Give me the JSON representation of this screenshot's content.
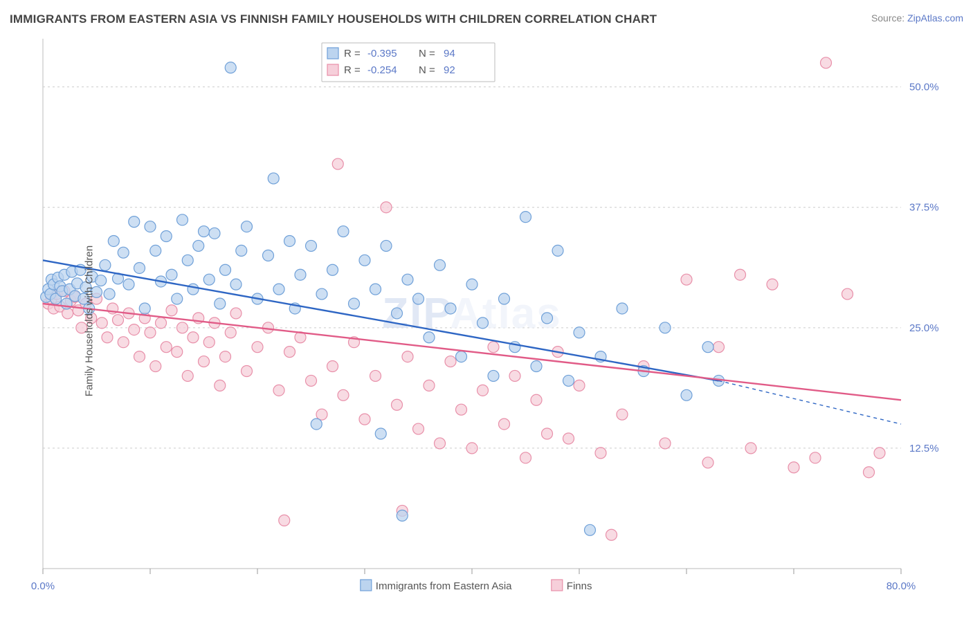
{
  "title": "IMMIGRANTS FROM EASTERN ASIA VS FINNISH FAMILY HOUSEHOLDS WITH CHILDREN CORRELATION CHART",
  "source_label": "Source:",
  "source_value": "ZipAtlas.com",
  "ylabel": "Family Households with Children",
  "watermark_a": "ZIP",
  "watermark_b": "Atlas",
  "chart": {
    "type": "scatter-with-trend",
    "background_color": "#ffffff",
    "grid_color": "#cccccc",
    "border_color": "#bbbbbb",
    "xlim": [
      0,
      80
    ],
    "ylim": [
      0,
      55
    ],
    "x_ticks": [
      0,
      10,
      20,
      30,
      40,
      50,
      60,
      70,
      80
    ],
    "x_tick_labels": {
      "0": "0.0%",
      "80": "80.0%"
    },
    "y_ticks": [
      12.5,
      25.0,
      37.5,
      50.0
    ],
    "y_tick_labels": [
      "12.5%",
      "25.0%",
      "37.5%",
      "50.0%"
    ],
    "marker_radius": 8,
    "marker_stroke_width": 1.2,
    "trend_line_width": 2.4,
    "trend_dash": "5 5",
    "series": [
      {
        "key": "blue",
        "label": "Immigrants from Eastern Asia",
        "fill": "#bcd4ef",
        "stroke": "#6fa0d8",
        "line_color": "#2e66c4",
        "R": "-0.395",
        "N": "94",
        "trend": {
          "x1": 0,
          "y1": 32.0,
          "x2": 63,
          "y2": 19.5,
          "x2_dash": 80,
          "y2_dash": 15.0
        },
        "points": [
          [
            0.3,
            28.2
          ],
          [
            0.5,
            29.0
          ],
          [
            0.7,
            28.5
          ],
          [
            0.8,
            30.0
          ],
          [
            1.0,
            29.5
          ],
          [
            1.2,
            28.0
          ],
          [
            1.4,
            30.2
          ],
          [
            1.6,
            29.3
          ],
          [
            1.8,
            28.8
          ],
          [
            2.0,
            30.5
          ],
          [
            2.2,
            27.5
          ],
          [
            2.5,
            29.0
          ],
          [
            2.7,
            30.8
          ],
          [
            3.0,
            28.3
          ],
          [
            3.2,
            29.6
          ],
          [
            3.5,
            31.0
          ],
          [
            3.8,
            28.0
          ],
          [
            4.0,
            29.2
          ],
          [
            4.3,
            27.0
          ],
          [
            4.6,
            30.3
          ],
          [
            5.0,
            28.7
          ],
          [
            5.4,
            29.9
          ],
          [
            5.8,
            31.5
          ],
          [
            6.2,
            28.5
          ],
          [
            6.6,
            34.0
          ],
          [
            7.0,
            30.1
          ],
          [
            7.5,
            32.8
          ],
          [
            8.0,
            29.5
          ],
          [
            8.5,
            36.0
          ],
          [
            9.0,
            31.2
          ],
          [
            9.5,
            27.0
          ],
          [
            10.0,
            35.5
          ],
          [
            10.5,
            33.0
          ],
          [
            11.0,
            29.8
          ],
          [
            11.5,
            34.5
          ],
          [
            12.0,
            30.5
          ],
          [
            12.5,
            28.0
          ],
          [
            13.0,
            36.2
          ],
          [
            13.5,
            32.0
          ],
          [
            14.0,
            29.0
          ],
          [
            14.5,
            33.5
          ],
          [
            15.0,
            35.0
          ],
          [
            15.5,
            30.0
          ],
          [
            16.0,
            34.8
          ],
          [
            16.5,
            27.5
          ],
          [
            17.0,
            31.0
          ],
          [
            17.5,
            52.0
          ],
          [
            18.0,
            29.5
          ],
          [
            18.5,
            33.0
          ],
          [
            19.0,
            35.5
          ],
          [
            20.0,
            28.0
          ],
          [
            21.0,
            32.5
          ],
          [
            21.5,
            40.5
          ],
          [
            22.0,
            29.0
          ],
          [
            23.0,
            34.0
          ],
          [
            23.5,
            27.0
          ],
          [
            24.0,
            30.5
          ],
          [
            25.0,
            33.5
          ],
          [
            25.5,
            15.0
          ],
          [
            26.0,
            28.5
          ],
          [
            27.0,
            31.0
          ],
          [
            28.0,
            35.0
          ],
          [
            29.0,
            27.5
          ],
          [
            30.0,
            32.0
          ],
          [
            31.0,
            29.0
          ],
          [
            31.5,
            14.0
          ],
          [
            32.0,
            33.5
          ],
          [
            33.0,
            26.5
          ],
          [
            33.5,
            5.5
          ],
          [
            34.0,
            30.0
          ],
          [
            35.0,
            28.0
          ],
          [
            36.0,
            24.0
          ],
          [
            37.0,
            31.5
          ],
          [
            38.0,
            27.0
          ],
          [
            39.0,
            22.0
          ],
          [
            40.0,
            29.5
          ],
          [
            41.0,
            25.5
          ],
          [
            42.0,
            20.0
          ],
          [
            43.0,
            28.0
          ],
          [
            44.0,
            23.0
          ],
          [
            45.0,
            36.5
          ],
          [
            46.0,
            21.0
          ],
          [
            47.0,
            26.0
          ],
          [
            48.0,
            33.0
          ],
          [
            49.0,
            19.5
          ],
          [
            50.0,
            24.5
          ],
          [
            51.0,
            4.0
          ],
          [
            52.0,
            22.0
          ],
          [
            54.0,
            27.0
          ],
          [
            56.0,
            20.5
          ],
          [
            58.0,
            25.0
          ],
          [
            60.0,
            18.0
          ],
          [
            62.0,
            23.0
          ],
          [
            63.0,
            19.5
          ]
        ]
      },
      {
        "key": "pink",
        "label": "Finns",
        "fill": "#f6cfda",
        "stroke": "#e88fa9",
        "line_color": "#e15b87",
        "R": "-0.254",
        "N": "92",
        "trend": {
          "x1": 0,
          "y1": 27.5,
          "x2": 80,
          "y2": 17.5
        },
        "points": [
          [
            0.5,
            27.5
          ],
          [
            0.8,
            28.0
          ],
          [
            1.0,
            27.0
          ],
          [
            1.3,
            28.5
          ],
          [
            1.6,
            27.2
          ],
          [
            2.0,
            28.8
          ],
          [
            2.3,
            26.5
          ],
          [
            2.6,
            27.8
          ],
          [
            3.0,
            28.2
          ],
          [
            3.3,
            26.8
          ],
          [
            3.6,
            25.0
          ],
          [
            4.0,
            27.5
          ],
          [
            4.5,
            26.0
          ],
          [
            5.0,
            28.0
          ],
          [
            5.5,
            25.5
          ],
          [
            6.0,
            24.0
          ],
          [
            6.5,
            27.0
          ],
          [
            7.0,
            25.8
          ],
          [
            7.5,
            23.5
          ],
          [
            8.0,
            26.5
          ],
          [
            8.5,
            24.8
          ],
          [
            9.0,
            22.0
          ],
          [
            9.5,
            26.0
          ],
          [
            10.0,
            24.5
          ],
          [
            10.5,
            21.0
          ],
          [
            11.0,
            25.5
          ],
          [
            11.5,
            23.0
          ],
          [
            12.0,
            26.8
          ],
          [
            12.5,
            22.5
          ],
          [
            13.0,
            25.0
          ],
          [
            13.5,
            20.0
          ],
          [
            14.0,
            24.0
          ],
          [
            14.5,
            26.0
          ],
          [
            15.0,
            21.5
          ],
          [
            15.5,
            23.5
          ],
          [
            16.0,
            25.5
          ],
          [
            16.5,
            19.0
          ],
          [
            17.0,
            22.0
          ],
          [
            17.5,
            24.5
          ],
          [
            18.0,
            26.5
          ],
          [
            19.0,
            20.5
          ],
          [
            20.0,
            23.0
          ],
          [
            21.0,
            25.0
          ],
          [
            22.0,
            18.5
          ],
          [
            22.5,
            5.0
          ],
          [
            23.0,
            22.5
          ],
          [
            24.0,
            24.0
          ],
          [
            25.0,
            19.5
          ],
          [
            26.0,
            16.0
          ],
          [
            27.0,
            21.0
          ],
          [
            27.5,
            42.0
          ],
          [
            28.0,
            18.0
          ],
          [
            29.0,
            23.5
          ],
          [
            30.0,
            15.5
          ],
          [
            31.0,
            20.0
          ],
          [
            32.0,
            37.5
          ],
          [
            33.0,
            17.0
          ],
          [
            33.5,
            6.0
          ],
          [
            34.0,
            22.0
          ],
          [
            35.0,
            14.5
          ],
          [
            36.0,
            19.0
          ],
          [
            37.0,
            13.0
          ],
          [
            38.0,
            21.5
          ],
          [
            39.0,
            16.5
          ],
          [
            40.0,
            12.5
          ],
          [
            41.0,
            18.5
          ],
          [
            42.0,
            23.0
          ],
          [
            43.0,
            15.0
          ],
          [
            44.0,
            20.0
          ],
          [
            45.0,
            11.5
          ],
          [
            46.0,
            17.5
          ],
          [
            47.0,
            14.0
          ],
          [
            48.0,
            22.5
          ],
          [
            49.0,
            13.5
          ],
          [
            50.0,
            19.0
          ],
          [
            52.0,
            12.0
          ],
          [
            53.0,
            3.5
          ],
          [
            54.0,
            16.0
          ],
          [
            56.0,
            21.0
          ],
          [
            58.0,
            13.0
          ],
          [
            60.0,
            30.0
          ],
          [
            62.0,
            11.0
          ],
          [
            63.0,
            23.0
          ],
          [
            65.0,
            30.5
          ],
          [
            66.0,
            12.5
          ],
          [
            68.0,
            29.5
          ],
          [
            70.0,
            10.5
          ],
          [
            72.0,
            11.5
          ],
          [
            73.0,
            52.5
          ],
          [
            75.0,
            28.5
          ],
          [
            77.0,
            10.0
          ],
          [
            78.0,
            12.0
          ]
        ]
      }
    ],
    "top_legend": {
      "R_label": "R =",
      "N_label": "N ="
    },
    "bottom_legend_swatch_size": 16
  }
}
